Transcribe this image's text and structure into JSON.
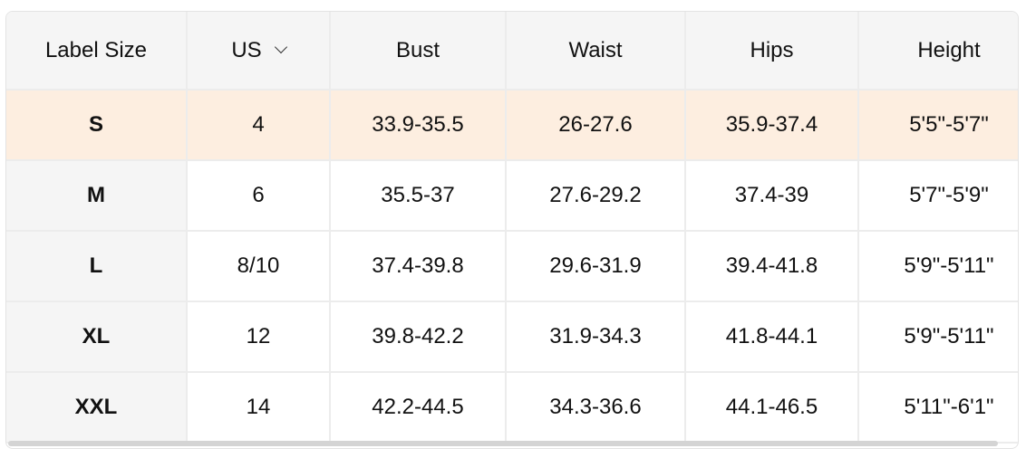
{
  "table": {
    "headers": [
      "Label Size",
      "US",
      "Bust",
      "Waist",
      "Hips",
      "Height"
    ],
    "unit_dropdown_icon": "chevron-down-icon",
    "highlight_color": "#fdeee0",
    "rows": [
      [
        "S",
        "4",
        "33.9-35.5",
        "26-27.6",
        "35.9-37.4",
        "5'5\"-5'7\""
      ],
      [
        "M",
        "6",
        "35.5-37",
        "27.6-29.2",
        "37.4-39",
        "5'7\"-5'9\""
      ],
      [
        "L",
        "8/10",
        "37.4-39.8",
        "29.6-31.9",
        "39.4-41.8",
        "5'9\"-5'11\""
      ],
      [
        "XL",
        "12",
        "39.8-42.2",
        "31.9-34.3",
        "41.8-44.1",
        "5'9\"-5'11\""
      ],
      [
        "XXL",
        "14",
        "42.2-44.5",
        "34.3-36.6",
        "44.1-46.5",
        "5'11\"-6'1\""
      ]
    ]
  }
}
